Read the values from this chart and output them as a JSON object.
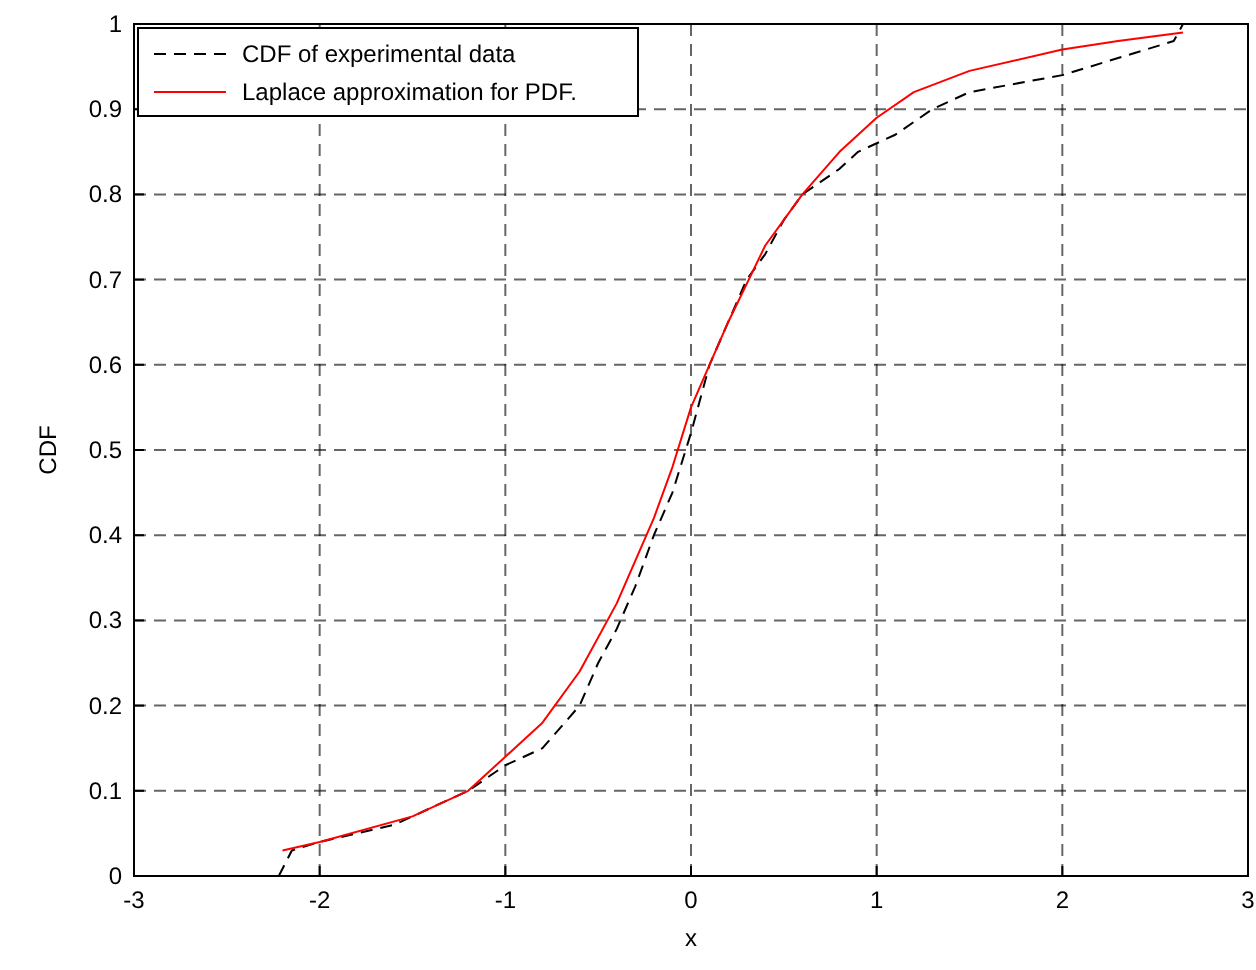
{
  "chart_data": {
    "type": "line",
    "xlabel": "x",
    "ylabel": "CDF",
    "xlim": [
      -3,
      3
    ],
    "xticks": [
      -3,
      -2,
      -1,
      0,
      1,
      2,
      3
    ],
    "ylim": [
      0,
      1
    ],
    "yticks": [
      0,
      0.1,
      0.2,
      0.3,
      0.4,
      0.5,
      0.6,
      0.7,
      0.8,
      0.9,
      1
    ],
    "grid": true,
    "legend": "top left",
    "series": [
      {
        "name": "CDF of experimental data",
        "color": "#000000",
        "line_style": "dashed",
        "x": [
          -2.22,
          -2.15,
          -2,
          -1.6,
          -1.3,
          -1.2,
          -1,
          -0.8,
          -0.6,
          -0.5,
          -0.4,
          -0.3,
          -0.2,
          -0.1,
          0,
          0.1,
          0.2,
          0.3,
          0.4,
          0.5,
          0.6,
          0.8,
          0.9,
          1.1,
          1.3,
          1.5,
          2,
          2.3,
          2.6,
          2.65
        ],
        "values": [
          0,
          0.03,
          0.04,
          0.06,
          0.09,
          0.1,
          0.13,
          0.15,
          0.2,
          0.25,
          0.29,
          0.34,
          0.4,
          0.45,
          0.52,
          0.6,
          0.65,
          0.7,
          0.73,
          0.77,
          0.8,
          0.83,
          0.85,
          0.87,
          0.9,
          0.92,
          0.94,
          0.96,
          0.98,
          1
        ]
      },
      {
        "name": "Laplace approximation for PDF.",
        "color": "#ff0000",
        "line_style": "solid",
        "x": [
          -2.2,
          -2,
          -1.5,
          -1.2,
          -1,
          -0.8,
          -0.6,
          -0.4,
          -0.2,
          -0.1,
          0,
          0.2,
          0.4,
          0.6,
          0.8,
          1,
          1.2,
          1.5,
          2,
          2.3,
          2.65
        ],
        "values": [
          0.03,
          0.04,
          0.07,
          0.1,
          0.14,
          0.18,
          0.24,
          0.32,
          0.42,
          0.48,
          0.55,
          0.65,
          0.74,
          0.8,
          0.85,
          0.89,
          0.92,
          0.945,
          0.97,
          0.98,
          0.99
        ]
      }
    ]
  }
}
